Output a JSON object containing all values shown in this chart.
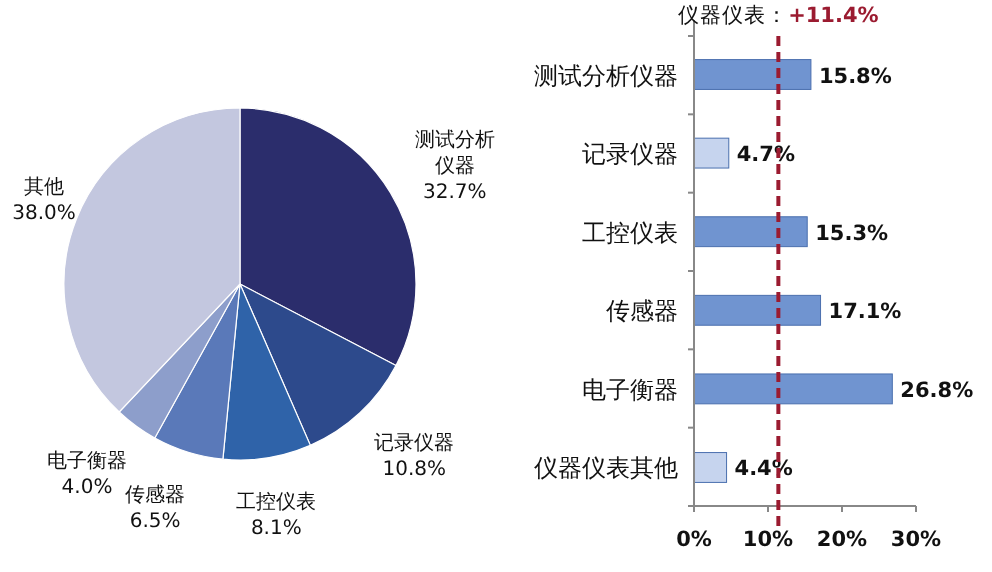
{
  "chart_data": [
    {
      "type": "pie",
      "categories": [
        "测试分析仪器",
        "记录仪器",
        "工控仪表",
        "传感器",
        "电子衡器",
        "其他"
      ],
      "values": [
        32.7,
        10.8,
        8.1,
        6.5,
        4.0,
        38.0
      ],
      "colors": [
        "#2b2d6c",
        "#2d4a8c",
        "#2f63a9",
        "#5a79b9",
        "#8d9ecb",
        "#c3c7df"
      ],
      "value_labels": [
        "32.7%",
        "10.8%",
        "8.1%",
        "6.5%",
        "4.0%",
        "38.0%"
      ]
    },
    {
      "type": "bar",
      "orientation": "horizontal",
      "categories": [
        "测试分析仪器",
        "记录仪器",
        "工控仪表",
        "传感器",
        "电子衡器",
        "仪器仪表其他"
      ],
      "values": [
        15.8,
        4.7,
        15.3,
        17.1,
        26.8,
        4.4
      ],
      "colors": [
        "#7094d0",
        "#c6d4ee",
        "#7094d0",
        "#7094d0",
        "#7094d0",
        "#c6d4ee"
      ],
      "value_labels": [
        "15.8%",
        "4.7%",
        "15.3%",
        "17.1%",
        "26.8%",
        "4.4%"
      ],
      "xlim": [
        0,
        30
      ],
      "xticks": [
        {
          "value": 0,
          "label": "0%"
        },
        {
          "value": 10,
          "label": "10%"
        },
        {
          "value": 20,
          "label": "20%"
        },
        {
          "value": 30,
          "label": "30%"
        }
      ],
      "ref_lines": [
        {
          "axis": "x",
          "value": 11.4,
          "label": "仪器仪表：+11.4%",
          "color": "#9b1b30",
          "line_style": "dashed"
        }
      ]
    }
  ]
}
